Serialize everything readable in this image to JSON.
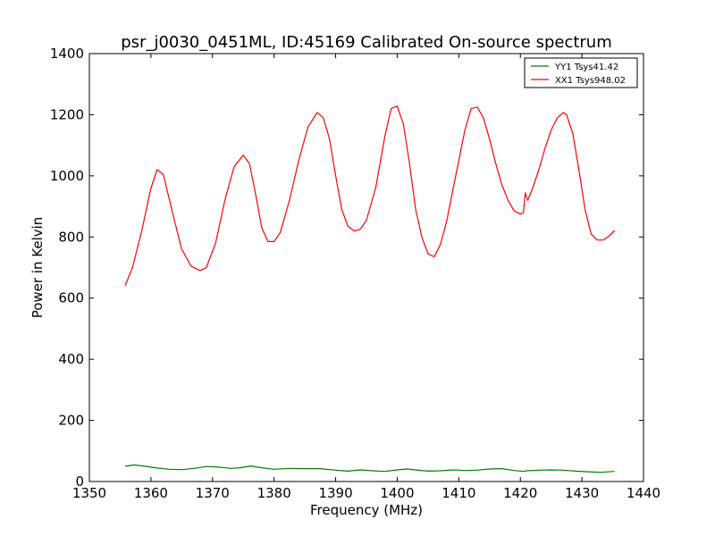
{
  "chart_data": {
    "type": "line",
    "title": "psr_j0030_0451ML, ID:45169 Calibrated On-source spectrum",
    "xlabel": "Frequency (MHz)",
    "ylabel": "Power in Kelvin",
    "xlim": [
      1350,
      1440
    ],
    "ylim": [
      0,
      1400
    ],
    "xticks": [
      1350,
      1360,
      1370,
      1380,
      1390,
      1400,
      1410,
      1420,
      1430,
      1440
    ],
    "yticks": [
      0,
      200,
      400,
      600,
      800,
      1000,
      1200,
      1400
    ],
    "grid": false,
    "legend_position": "top-right",
    "series": [
      {
        "name": "YY1 Tsys41.42",
        "color": "#008000",
        "x": [
          1355.8,
          1357.3,
          1359,
          1361,
          1363,
          1365,
          1367,
          1369,
          1371,
          1373,
          1374.5,
          1376.2,
          1378,
          1380,
          1382.5,
          1385,
          1387.5,
          1390,
          1392,
          1394,
          1396,
          1398,
          1400,
          1401.5,
          1403,
          1405,
          1407,
          1409,
          1411,
          1413,
          1415,
          1417,
          1419,
          1420.5,
          1421,
          1423,
          1425,
          1427,
          1429,
          1431,
          1433,
          1435.3
        ],
        "y": [
          50,
          54,
          50,
          44,
          40,
          39,
          43,
          49,
          47,
          43,
          45,
          51,
          45,
          40,
          43,
          42,
          42,
          37,
          34,
          38,
          35,
          33,
          38,
          41,
          38,
          34,
          35,
          38,
          36,
          37,
          41,
          42,
          36,
          33,
          35,
          37,
          38,
          37,
          34,
          32,
          30,
          33
        ]
      },
      {
        "name": "XX1 Tsys948.02",
        "color": "#ff0000",
        "x": [
          1355.8,
          1357,
          1358.5,
          1360,
          1361,
          1362,
          1363.5,
          1365,
          1366.5,
          1368,
          1369,
          1370.5,
          1372,
          1373.5,
          1375,
          1376,
          1377,
          1378,
          1379,
          1380,
          1381,
          1382.5,
          1384,
          1385.5,
          1387,
          1388,
          1389,
          1390,
          1391,
          1392,
          1393,
          1394,
          1395,
          1396.5,
          1398,
          1399,
          1400,
          1401,
          1402,
          1403,
          1404,
          1405,
          1406,
          1407,
          1408,
          1409.5,
          1411,
          1412,
          1413,
          1414,
          1415,
          1416,
          1417,
          1418,
          1419,
          1420,
          1420.5,
          1420.8,
          1421.2,
          1422,
          1423,
          1424,
          1425,
          1426,
          1427,
          1427.5,
          1428.5,
          1429.5,
          1430.5,
          1431.5,
          1432.5,
          1433.5,
          1434.5,
          1435.3
        ],
        "y": [
          640,
          700,
          820,
          960,
          1020,
          1005,
          880,
          760,
          705,
          690,
          700,
          780,
          920,
          1030,
          1068,
          1040,
          940,
          830,
          785,
          785,
          815,
          920,
          1050,
          1160,
          1207,
          1190,
          1120,
          1000,
          890,
          835,
          820,
          825,
          855,
          960,
          1130,
          1220,
          1228,
          1170,
          1040,
          890,
          800,
          745,
          735,
          775,
          850,
          1000,
          1150,
          1220,
          1225,
          1190,
          1120,
          1040,
          970,
          920,
          885,
          875,
          880,
          945,
          920,
          960,
          1020,
          1090,
          1150,
          1190,
          1207,
          1200,
          1140,
          1020,
          890,
          810,
          790,
          790,
          805,
          822
        ]
      }
    ]
  }
}
